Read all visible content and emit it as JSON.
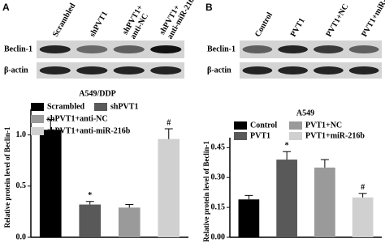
{
  "panels": [
    {
      "label": "A",
      "lanes": [
        "Scrambled",
        "shPVT1",
        "shPVT1+\nanti-NC",
        "shPVT1+\nanti-miR-216b"
      ],
      "rows": [
        "Beclin-1",
        "β-actin"
      ]
    },
    {
      "label": "B",
      "lanes": [
        "Control",
        "PVT1",
        "PVT1+NC",
        "PVT1+miR-216b"
      ],
      "rows": [
        "Beclin-1",
        "β-actin"
      ]
    }
  ],
  "chart_data": [
    {
      "type": "bar",
      "title": "A549/DDP",
      "y_label": "Relative protein level of Beclin-1",
      "categories": [
        "Scrambled",
        "shPVT1",
        "shPVT1+anti-NC",
        "shPVT1+anti-miR-216b"
      ],
      "values": [
        1.05,
        0.32,
        0.29,
        0.96
      ],
      "errors": [
        0.1,
        0.03,
        0.03,
        0.1
      ],
      "colors": [
        "#000000",
        "#595959",
        "#9a9a9a",
        "#d0d0d0"
      ],
      "annotations": [
        {
          "category": "shPVT1",
          "text": "*"
        },
        {
          "category": "shPVT1+anti-miR-216b",
          "text": "#"
        }
      ],
      "ylim": [
        0,
        1.25
      ],
      "yticks": [
        {
          "value": 0,
          "label": "0.0"
        },
        {
          "value": 0.5,
          "label": "0.5"
        },
        {
          "value": 1,
          "label": "1.0"
        }
      ]
    },
    {
      "type": "bar",
      "title": "A549",
      "y_label": "Relative protein level of Beclin-1",
      "categories": [
        "Control",
        "PVT1",
        "PVT1+NC",
        "PVT1+miR-216b"
      ],
      "values": [
        0.19,
        0.39,
        0.35,
        0.2
      ],
      "errors": [
        0.02,
        0.04,
        0.04,
        0.02
      ],
      "colors": [
        "#000000",
        "#595959",
        "#9a9a9a",
        "#d0d0d0"
      ],
      "annotations": [
        {
          "category": "PVT1",
          "text": "*"
        },
        {
          "category": "PVT1+miR-216b",
          "text": "#"
        }
      ],
      "ylim": [
        0,
        0.5
      ],
      "yticks": [
        {
          "value": 0,
          "label": "0.00"
        },
        {
          "value": 0.15,
          "label": "0.15"
        },
        {
          "value": 0.3,
          "label": "0.30"
        },
        {
          "value": 0.45,
          "label": "0.45"
        }
      ]
    }
  ]
}
